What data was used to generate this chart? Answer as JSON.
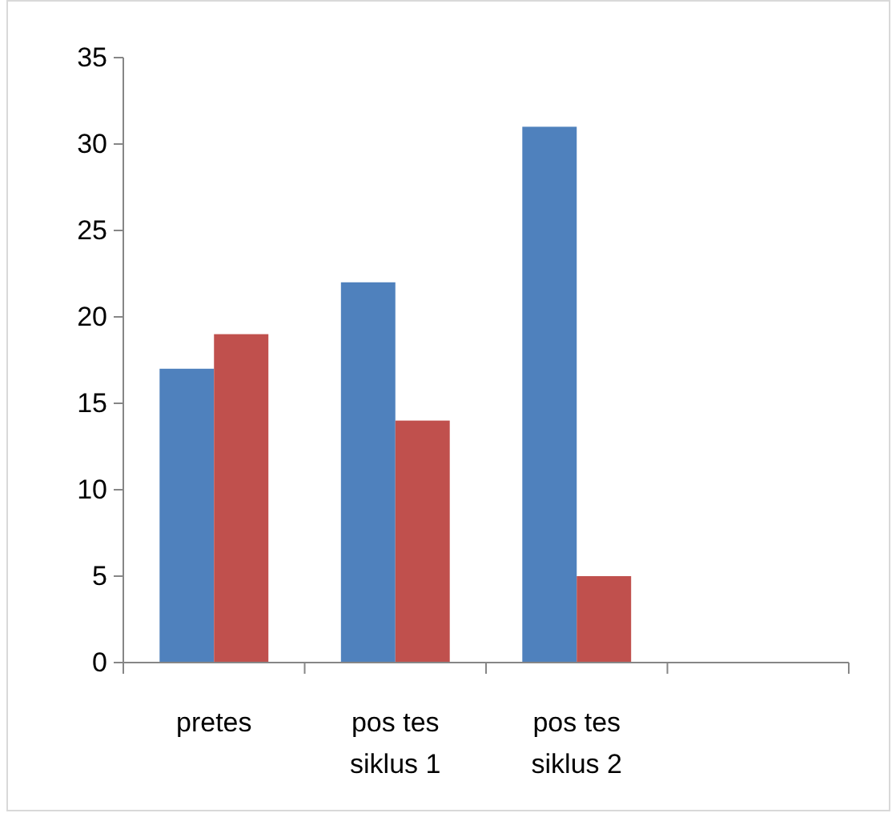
{
  "chart_data": {
    "type": "bar",
    "categories": [
      "pretes",
      "pos tes siklus 1",
      "pos tes siklus 2",
      null
    ],
    "series": [
      {
        "color": "#4f81bd",
        "values": [
          17,
          22,
          31,
          null
        ]
      },
      {
        "color": "#c0504d",
        "values": [
          19,
          14,
          5,
          null
        ]
      }
    ],
    "ylim": [
      0,
      35
    ],
    "yticks": [
      0,
      5,
      10,
      15,
      20,
      25,
      30,
      35
    ]
  }
}
